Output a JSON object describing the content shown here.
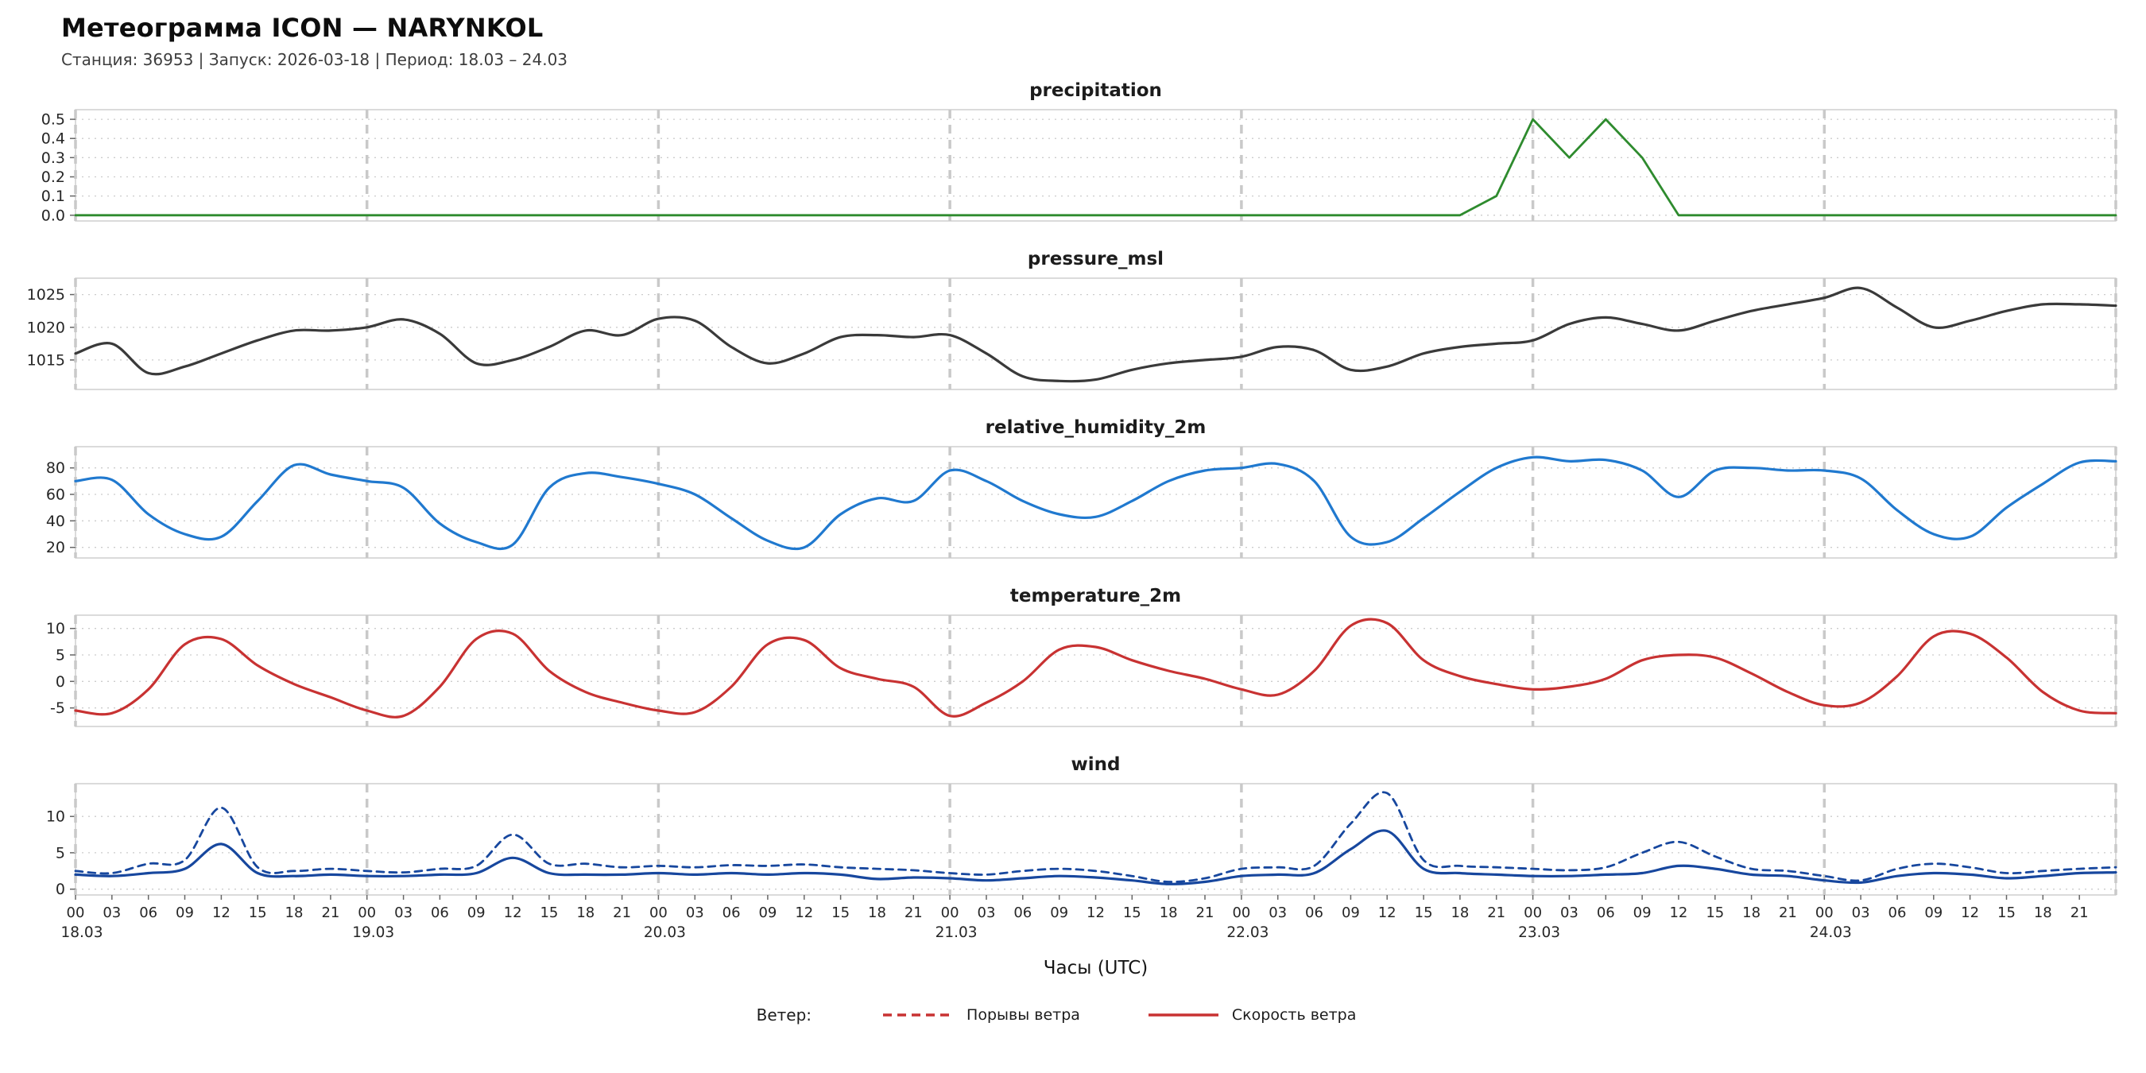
{
  "header": {
    "title": "Метеограмма ICON — NARYNKOL",
    "subtitle": "Станция: 36953  | Запуск: 2026-03-18  | Период: 18.03 – 24.03"
  },
  "xaxis": {
    "label": "Часы (UTC)",
    "hours_start": 0,
    "hours_end": 168,
    "hours_step": 3,
    "hour_tick_labels": [
      "00",
      "03",
      "06",
      "09",
      "12",
      "15",
      "18",
      "21"
    ],
    "day_labels": [
      "18.03",
      "19.03",
      "20.03",
      "21.03",
      "22.03",
      "23.03",
      "24.03"
    ]
  },
  "legend": {
    "prefix": "Ветер:",
    "items": [
      {
        "label": "Порывы ветра",
        "style": "dashed",
        "color": "#c83232"
      },
      {
        "label": "Скорость ветра",
        "style": "solid",
        "color": "#c83232"
      }
    ]
  },
  "style_colors": {
    "grid_dotted": "#cccccc",
    "day_line_dashed": "#c9c9c9",
    "frame": "#cfcfcf",
    "tick_text": "#262626"
  },
  "chart_data": [
    {
      "type": "line",
      "title": "precipitation",
      "smooth": false,
      "ylim": [
        -0.03,
        0.55
      ],
      "ytick_values": [
        0.0,
        0.1,
        0.2,
        0.3,
        0.4,
        0.5
      ],
      "ytick_labels": [
        "0.0",
        "0.1",
        "0.2",
        "0.3",
        "0.4",
        "0.5"
      ],
      "series": [
        {
          "name": "precipitation",
          "color": "#2e8b2e",
          "width": 2.8,
          "dash": false,
          "values": [
            0,
            0,
            0,
            0,
            0,
            0,
            0,
            0,
            0,
            0,
            0,
            0,
            0,
            0,
            0,
            0,
            0,
            0,
            0,
            0,
            0,
            0,
            0,
            0,
            0,
            0,
            0,
            0,
            0,
            0,
            0,
            0,
            0,
            0,
            0,
            0,
            0,
            0,
            0,
            0.1,
            0.5,
            0.3,
            0.5,
            0.3,
            0,
            0,
            0,
            0,
            0,
            0,
            0,
            0,
            0,
            0,
            0,
            0,
            0
          ]
        }
      ]
    },
    {
      "type": "line",
      "title": "pressure_msl",
      "smooth": true,
      "ylim": [
        1010.5,
        1027.5
      ],
      "ytick_values": [
        1015,
        1020,
        1025
      ],
      "ytick_labels": [
        "1015",
        "1020",
        "1025"
      ],
      "series": [
        {
          "name": "pressure_msl",
          "color": "#3a3a3a",
          "width": 3.2,
          "dash": false,
          "values": [
            1016,
            1017.5,
            1013,
            1014,
            1016,
            1018,
            1019.5,
            1019.5,
            1020,
            1021.2,
            1019,
            1014.5,
            1015,
            1017,
            1019.5,
            1018.8,
            1021.3,
            1021,
            1017,
            1014.5,
            1016,
            1018.5,
            1018.8,
            1018.5,
            1018.8,
            1016,
            1012.5,
            1011.8,
            1012,
            1013.5,
            1014.5,
            1015,
            1015.5,
            1017,
            1016.5,
            1013.5,
            1014,
            1016,
            1017,
            1017.5,
            1018,
            1020.5,
            1021.5,
            1020.5,
            1019.5,
            1021,
            1022.5,
            1023.5,
            1024.5,
            1026,
            1023,
            1020,
            1021,
            1022.5,
            1023.5,
            1023.5,
            1023.3
          ]
        }
      ]
    },
    {
      "type": "line",
      "title": "relative_humidity_2m",
      "smooth": true,
      "ylim": [
        12,
        96
      ],
      "ytick_values": [
        20,
        40,
        60,
        80
      ],
      "ytick_labels": [
        "20",
        "40",
        "60",
        "80"
      ],
      "series": [
        {
          "name": "relative_humidity_2m",
          "color": "#2079cf",
          "width": 3.2,
          "dash": false,
          "values": [
            70,
            71,
            45,
            30,
            28,
            55,
            82,
            75,
            70,
            65,
            38,
            24,
            22,
            65,
            76,
            73,
            68,
            60,
            42,
            25,
            20,
            45,
            57,
            55,
            78,
            70,
            55,
            45,
            43,
            55,
            70,
            78,
            80,
            83,
            70,
            28,
            24,
            42,
            62,
            80,
            88,
            85,
            86,
            78,
            58,
            78,
            80,
            78,
            78,
            72,
            48,
            30,
            28,
            50,
            68,
            84,
            85
          ]
        }
      ]
    },
    {
      "type": "line",
      "title": "temperature_2m",
      "smooth": true,
      "ylim": [
        -8.5,
        12.5
      ],
      "ytick_values": [
        -5,
        0,
        5,
        10
      ],
      "ytick_labels": [
        "-5",
        "0",
        "5",
        "10"
      ],
      "series": [
        {
          "name": "temperature_2m",
          "color": "#c83232",
          "width": 3.2,
          "dash": false,
          "values": [
            -5.5,
            -6,
            -1.5,
            7,
            8,
            3,
            -0.5,
            -3,
            -5.5,
            -6.5,
            -1,
            8,
            9,
            2,
            -2,
            -4,
            -5.5,
            -5.8,
            -1,
            7,
            7.8,
            2.5,
            0.5,
            -1,
            -6.5,
            -4,
            0,
            6,
            6.5,
            4,
            2,
            0.5,
            -1.5,
            -2.5,
            2,
            10.5,
            11,
            4,
            1,
            -0.5,
            -1.5,
            -1,
            0.5,
            4,
            5,
            4.5,
            1.5,
            -2,
            -4.5,
            -4,
            1,
            8.5,
            9,
            4.5,
            -2,
            -5.5,
            -6
          ]
        }
      ]
    },
    {
      "type": "line",
      "title": "wind",
      "smooth": true,
      "ylim": [
        -0.8,
        14.5
      ],
      "ytick_values": [
        0,
        5,
        10
      ],
      "ytick_labels": [
        "0",
        "5",
        "10"
      ],
      "series": [
        {
          "name": "wind_gusts",
          "color": "#17479e",
          "width": 2.8,
          "dash": true,
          "values": [
            2.5,
            2.2,
            3.5,
            4,
            11.2,
            3,
            2.5,
            2.8,
            2.5,
            2.3,
            2.8,
            3.2,
            7.5,
            3.5,
            3.5,
            3,
            3.2,
            3,
            3.3,
            3.2,
            3.4,
            3,
            2.8,
            2.6,
            2.2,
            2,
            2.5,
            2.8,
            2.5,
            1.8,
            1,
            1.5,
            2.8,
            3,
            3.2,
            9,
            13.2,
            4,
            3.2,
            3,
            2.8,
            2.6,
            3,
            5,
            6.5,
            4.5,
            2.8,
            2.5,
            1.8,
            1.2,
            2.8,
            3.5,
            3,
            2.2,
            2.5,
            2.8,
            3
          ]
        },
        {
          "name": "wind_speed",
          "color": "#17479e",
          "width": 3.2,
          "dash": false,
          "values": [
            2,
            1.8,
            2.2,
            2.8,
            6.2,
            2.2,
            1.8,
            2,
            1.8,
            1.8,
            2,
            2.2,
            4.3,
            2.2,
            2,
            2,
            2.2,
            2,
            2.2,
            2,
            2.2,
            2,
            1.4,
            1.6,
            1.5,
            1.2,
            1.5,
            1.8,
            1.6,
            1.2,
            0.7,
            1,
            1.8,
            2,
            2.2,
            5.5,
            8,
            2.8,
            2.2,
            2,
            1.8,
            1.8,
            2,
            2.2,
            3.2,
            2.8,
            2,
            1.8,
            1.2,
            0.9,
            1.8,
            2.2,
            2,
            1.5,
            1.8,
            2.2,
            2.3
          ]
        }
      ]
    }
  ]
}
